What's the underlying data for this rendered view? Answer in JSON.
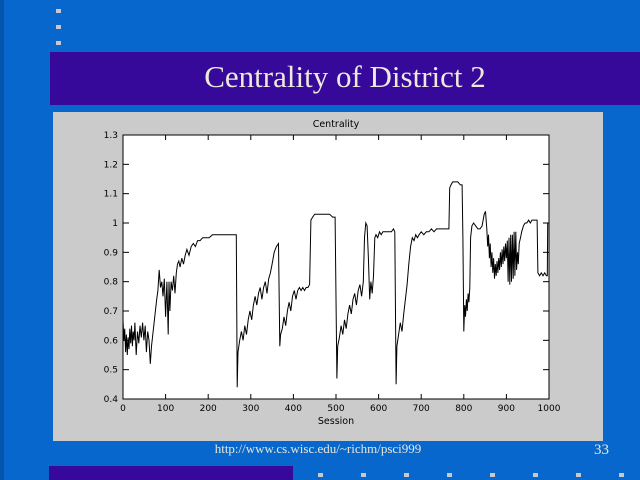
{
  "slide": {
    "title": "Centrality of District 2",
    "footer_url": "http://www.cs.wisc.edu/~richm/psci999",
    "page_number": "33"
  },
  "colors": {
    "background": "#0767CC",
    "left_strip": "#0356AB",
    "title_bar": "#36099B",
    "title_text": "#EDEADB",
    "footer_text": "#E9E7D6",
    "chart_bg": "#CBCBCB",
    "plot_bg": "#FFFFFF",
    "plot_line": "#000000",
    "plot_text": "#000000",
    "bullet": "#C6C9CE"
  },
  "decorations": {
    "top_dots_count": 3,
    "top_dots_spacing": 16,
    "bottom_ticks_count": 8,
    "bottom_ticks_start": 318,
    "bottom_ticks_spacing": 43
  },
  "chart_data": {
    "type": "line",
    "title": "Centrality",
    "xlabel": "Session",
    "ylabel": "",
    "xlim": [
      0,
      1000
    ],
    "ylim": [
      0.4,
      1.3
    ],
    "xticks": [
      0,
      100,
      200,
      300,
      400,
      500,
      600,
      700,
      800,
      900,
      1000
    ],
    "xtick_labels": [
      "0",
      "100",
      "200",
      "300",
      "400",
      "500",
      "600",
      "700",
      "800",
      "900",
      "1000"
    ],
    "yticks": [
      0.4,
      0.5,
      0.6,
      0.7,
      0.8,
      0.9,
      1.0,
      1.1,
      1.2,
      1.3
    ],
    "ytick_labels": [
      "0.4",
      "0.5",
      "0.6",
      "0.7",
      "0.8",
      "0.9",
      "1",
      "1.1",
      "1.2",
      "1.3"
    ],
    "grid": false,
    "legend": null,
    "series": [
      {
        "name": "centrality",
        "points": [
          [
            0,
            0.67
          ],
          [
            2,
            0.6
          ],
          [
            4,
            0.64
          ],
          [
            6,
            0.56
          ],
          [
            8,
            0.62
          ],
          [
            10,
            0.55
          ],
          [
            12,
            0.61
          ],
          [
            14,
            0.57
          ],
          [
            16,
            0.64
          ],
          [
            18,
            0.59
          ],
          [
            20,
            0.65
          ],
          [
            22,
            0.58
          ],
          [
            24,
            0.63
          ],
          [
            26,
            0.6
          ],
          [
            28,
            0.66
          ],
          [
            31,
            0.55
          ],
          [
            34,
            0.63
          ],
          [
            37,
            0.59
          ],
          [
            40,
            0.65
          ],
          [
            43,
            0.61
          ],
          [
            46,
            0.66
          ],
          [
            49,
            0.6
          ],
          [
            52,
            0.65
          ],
          [
            55,
            0.56
          ],
          [
            58,
            0.63
          ],
          [
            61,
            0.6
          ],
          [
            64,
            0.52
          ],
          [
            67,
            0.58
          ],
          [
            70,
            0.62
          ],
          [
            73,
            0.66
          ],
          [
            76,
            0.7
          ],
          [
            79,
            0.74
          ],
          [
            82,
            0.77
          ],
          [
            85,
            0.84
          ],
          [
            88,
            0.78
          ],
          [
            91,
            0.8
          ],
          [
            94,
            0.75
          ],
          [
            97,
            0.81
          ],
          [
            100,
            0.68
          ],
          [
            103,
            0.8
          ],
          [
            106,
            0.62
          ],
          [
            108,
            0.8
          ],
          [
            110,
            0.7
          ],
          [
            113,
            0.8
          ],
          [
            116,
            0.77
          ],
          [
            119,
            0.82
          ],
          [
            122,
            0.76
          ],
          [
            125,
            0.83
          ],
          [
            128,
            0.86
          ],
          [
            131,
            0.87
          ],
          [
            134,
            0.85
          ],
          [
            138,
            0.88
          ],
          [
            142,
            0.86
          ],
          [
            146,
            0.89
          ],
          [
            150,
            0.91
          ],
          [
            155,
            0.89
          ],
          [
            160,
            0.92
          ],
          [
            165,
            0.93
          ],
          [
            170,
            0.92
          ],
          [
            175,
            0.94
          ],
          [
            181,
            0.94
          ],
          [
            187,
            0.95
          ],
          [
            194,
            0.95
          ],
          [
            202,
            0.95
          ],
          [
            210,
            0.96
          ],
          [
            220,
            0.96
          ],
          [
            230,
            0.96
          ],
          [
            240,
            0.96
          ],
          [
            250,
            0.96
          ],
          [
            260,
            0.96
          ],
          [
            266,
            0.96
          ],
          [
            268,
            0.44
          ],
          [
            270,
            0.56
          ],
          [
            274,
            0.6
          ],
          [
            278,
            0.63
          ],
          [
            282,
            0.6
          ],
          [
            286,
            0.65
          ],
          [
            290,
            0.62
          ],
          [
            294,
            0.67
          ],
          [
            298,
            0.7
          ],
          [
            302,
            0.67
          ],
          [
            306,
            0.72
          ],
          [
            310,
            0.75
          ],
          [
            314,
            0.72
          ],
          [
            318,
            0.76
          ],
          [
            322,
            0.78
          ],
          [
            326,
            0.74
          ],
          [
            330,
            0.78
          ],
          [
            334,
            0.8
          ],
          [
            338,
            0.76
          ],
          [
            342,
            0.81
          ],
          [
            346,
            0.83
          ],
          [
            350,
            0.86
          ],
          [
            355,
            0.9
          ],
          [
            360,
            0.92
          ],
          [
            365,
            0.93
          ],
          [
            368,
            0.58
          ],
          [
            370,
            0.62
          ],
          [
            374,
            0.64
          ],
          [
            378,
            0.68
          ],
          [
            382,
            0.65
          ],
          [
            386,
            0.7
          ],
          [
            390,
            0.73
          ],
          [
            394,
            0.7
          ],
          [
            398,
            0.75
          ],
          [
            402,
            0.77
          ],
          [
            406,
            0.74
          ],
          [
            410,
            0.77
          ],
          [
            414,
            0.78
          ],
          [
            418,
            0.77
          ],
          [
            422,
            0.78
          ],
          [
            426,
            0.77
          ],
          [
            430,
            0.78
          ],
          [
            434,
            0.78
          ],
          [
            438,
            0.79
          ],
          [
            441,
            1.01
          ],
          [
            445,
            1.02
          ],
          [
            450,
            1.03
          ],
          [
            457,
            1.03
          ],
          [
            464,
            1.03
          ],
          [
            471,
            1.03
          ],
          [
            478,
            1.03
          ],
          [
            485,
            1.03
          ],
          [
            492,
            1.02
          ],
          [
            498,
            1.02
          ],
          [
            502,
            0.47
          ],
          [
            504,
            0.58
          ],
          [
            508,
            0.61
          ],
          [
            512,
            0.65
          ],
          [
            516,
            0.62
          ],
          [
            520,
            0.67
          ],
          [
            524,
            0.64
          ],
          [
            528,
            0.69
          ],
          [
            532,
            0.72
          ],
          [
            536,
            0.69
          ],
          [
            540,
            0.74
          ],
          [
            544,
            0.76
          ],
          [
            548,
            0.72
          ],
          [
            552,
            0.77
          ],
          [
            556,
            0.79
          ],
          [
            560,
            0.75
          ],
          [
            564,
            0.8
          ],
          [
            567,
            0.95
          ],
          [
            570,
            1.0
          ],
          [
            573,
            0.99
          ],
          [
            576,
            0.88
          ],
          [
            579,
            0.74
          ],
          [
            582,
            0.8
          ],
          [
            585,
            0.76
          ],
          [
            588,
            0.82
          ],
          [
            591,
            0.95
          ],
          [
            594,
            0.96
          ],
          [
            598,
            0.95
          ],
          [
            602,
            0.97
          ],
          [
            606,
            0.96
          ],
          [
            610,
            0.97
          ],
          [
            615,
            0.97
          ],
          [
            620,
            0.97
          ],
          [
            625,
            0.97
          ],
          [
            630,
            0.97
          ],
          [
            635,
            0.98
          ],
          [
            638,
            0.97
          ],
          [
            641,
            0.45
          ],
          [
            643,
            0.58
          ],
          [
            647,
            0.62
          ],
          [
            651,
            0.66
          ],
          [
            655,
            0.63
          ],
          [
            659,
            0.69
          ],
          [
            663,
            0.74
          ],
          [
            667,
            0.79
          ],
          [
            671,
            0.86
          ],
          [
            675,
            0.92
          ],
          [
            679,
            0.95
          ],
          [
            683,
            0.94
          ],
          [
            687,
            0.96
          ],
          [
            691,
            0.95
          ],
          [
            695,
            0.96
          ],
          [
            700,
            0.97
          ],
          [
            706,
            0.96
          ],
          [
            712,
            0.97
          ],
          [
            718,
            0.97
          ],
          [
            724,
            0.98
          ],
          [
            730,
            0.97
          ],
          [
            736,
            0.98
          ],
          [
            742,
            0.98
          ],
          [
            748,
            0.98
          ],
          [
            754,
            0.98
          ],
          [
            760,
            0.98
          ],
          [
            765,
            0.98
          ],
          [
            767,
            1.12
          ],
          [
            770,
            1.13
          ],
          [
            774,
            1.14
          ],
          [
            780,
            1.14
          ],
          [
            786,
            1.14
          ],
          [
            792,
            1.13
          ],
          [
            796,
            1.13
          ],
          [
            798,
            0.95
          ],
          [
            800,
            0.63
          ],
          [
            802,
            0.72
          ],
          [
            804,
            0.68
          ],
          [
            806,
            0.74
          ],
          [
            808,
            0.7
          ],
          [
            810,
            0.76
          ],
          [
            812,
            0.73
          ],
          [
            814,
            0.78
          ],
          [
            816,
            0.95
          ],
          [
            819,
            0.99
          ],
          [
            823,
            1.0
          ],
          [
            828,
            0.99
          ],
          [
            833,
            0.98
          ],
          [
            838,
            0.98
          ],
          [
            843,
            0.99
          ],
          [
            848,
            1.03
          ],
          [
            851,
            1.04
          ],
          [
            854,
            0.98
          ],
          [
            856,
            0.92
          ],
          [
            858,
            0.96
          ],
          [
            860,
            0.88
          ],
          [
            862,
            0.93
          ],
          [
            864,
            0.85
          ],
          [
            866,
            0.9
          ],
          [
            868,
            0.83
          ],
          [
            870,
            0.88
          ],
          [
            872,
            0.81
          ],
          [
            874,
            0.86
          ],
          [
            876,
            0.82
          ],
          [
            878,
            0.87
          ],
          [
            880,
            0.83
          ],
          [
            882,
            0.88
          ],
          [
            884,
            0.84
          ],
          [
            886,
            0.9
          ],
          [
            888,
            0.85
          ],
          [
            890,
            0.91
          ],
          [
            892,
            0.86
          ],
          [
            894,
            0.92
          ],
          [
            896,
            0.87
          ],
          [
            898,
            0.93
          ],
          [
            900,
            0.88
          ],
          [
            902,
            0.94
          ],
          [
            904,
            0.8
          ],
          [
            906,
            0.95
          ],
          [
            908,
            0.79
          ],
          [
            910,
            0.96
          ],
          [
            912,
            0.8
          ],
          [
            914,
            0.96
          ],
          [
            916,
            0.81
          ],
          [
            918,
            0.97
          ],
          [
            920,
            0.82
          ],
          [
            922,
            0.97
          ],
          [
            924,
            0.84
          ],
          [
            926,
            0.9
          ],
          [
            928,
            0.86
          ],
          [
            930,
            0.93
          ],
          [
            933,
            0.95
          ],
          [
            936,
            0.97
          ],
          [
            940,
            0.99
          ],
          [
            944,
            1.0
          ],
          [
            948,
            1.0
          ],
          [
            952,
            1.01
          ],
          [
            956,
            1.0
          ],
          [
            960,
            1.01
          ],
          [
            964,
            1.01
          ],
          [
            968,
            1.01
          ],
          [
            972,
            1.01
          ],
          [
            974,
            0.83
          ],
          [
            978,
            0.82
          ],
          [
            982,
            0.83
          ],
          [
            986,
            0.82
          ],
          [
            990,
            0.83
          ],
          [
            994,
            0.82
          ],
          [
            996,
            0.82
          ],
          [
            997,
            1.0
          ],
          [
            1000,
            1.0
          ]
        ]
      }
    ]
  }
}
